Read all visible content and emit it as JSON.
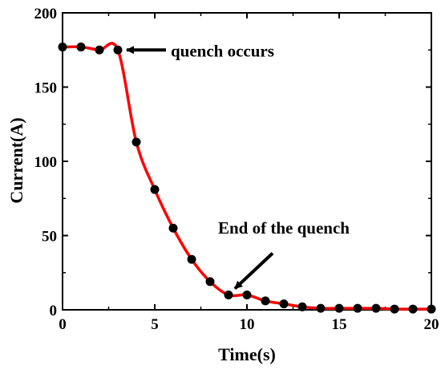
{
  "chart_data": {
    "type": "line",
    "xlabel": "Time(s)",
    "ylabel": "Current(A)",
    "xlim": [
      0,
      20
    ],
    "ylim": [
      0,
      200
    ],
    "xticks": [
      "0",
      "5",
      "10",
      "15",
      "20"
    ],
    "yticks": [
      "0",
      "50",
      "100",
      "150",
      "200"
    ],
    "grid": false,
    "series": [
      {
        "color": "#ff0000",
        "marker_color": "#000000",
        "x": [
          0,
          1,
          2,
          3,
          4,
          5,
          6,
          7,
          8,
          9,
          10,
          11,
          12,
          13,
          14,
          15,
          16,
          17,
          18,
          19,
          20
        ],
        "y": [
          177,
          177,
          175,
          175,
          113,
          81,
          55,
          34,
          19,
          10,
          10,
          6,
          4,
          2,
          1,
          1,
          1,
          1,
          0.5,
          0.5,
          0.5
        ]
      }
    ],
    "annotations": [
      {
        "text": "quench occurs",
        "x": 3,
        "y": 175
      },
      {
        "text": "End of the quench",
        "x": 9,
        "y": 10
      }
    ]
  }
}
